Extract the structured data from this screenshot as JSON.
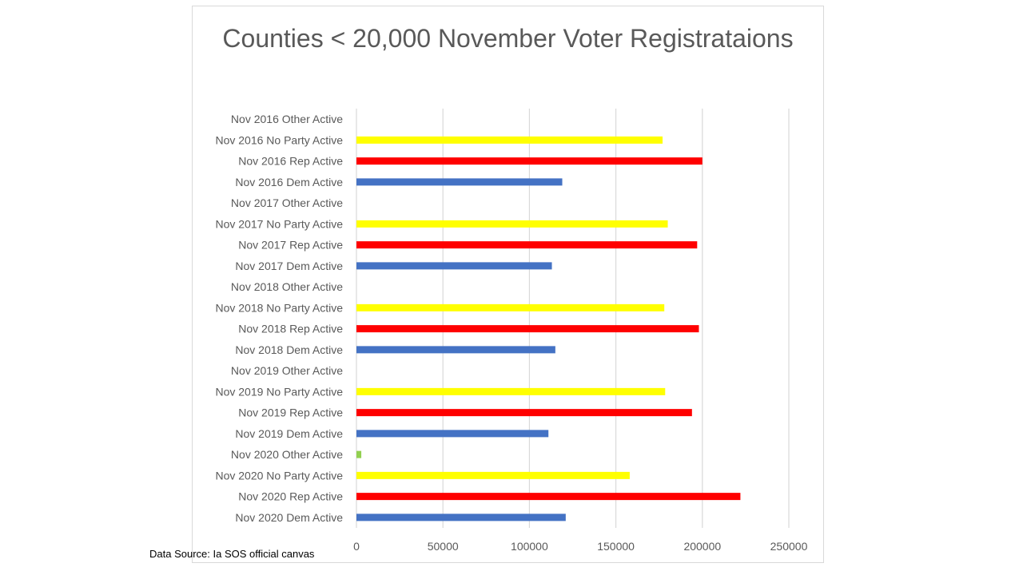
{
  "colors": {
    "dem": "#4472c4",
    "rep": "#ff0000",
    "no_party": "#ffff00",
    "other": "#92d050",
    "gridline": "#d9d9d9",
    "tick_text": "#595959",
    "frame": "#d9d9d9"
  },
  "source_note": "Data Source: Ia SOS official canvas",
  "chart_data": {
    "type": "bar",
    "orientation": "horizontal",
    "title": "Counties < 20,000 November Voter Registrataions",
    "xlabel": "",
    "ylabel": "",
    "xlim": [
      0,
      250000
    ],
    "x_ticks": [
      0,
      50000,
      100000,
      150000,
      200000,
      250000
    ],
    "x_tick_labels": [
      "0",
      "50000",
      "100000",
      "150000",
      "200000",
      "250000"
    ],
    "grid": true,
    "legend": "none",
    "categories": [
      "Nov 2016 Other Active",
      "Nov 2016 No  Party Active",
      "Nov 2016 Rep Active",
      "Nov 2016 Dem Active",
      "Nov 2017 Other Active",
      "Nov 2017 No  Party Active",
      "Nov 2017 Rep Active",
      "Nov 2017 Dem Active",
      "Nov 2018 Other Active",
      "Nov 2018 No  Party Active",
      "Nov 2018 Rep Active",
      "Nov 2018 Dem Active",
      "Nov 2019 Other Active",
      "Nov 2019 No  Party Active",
      "Nov 2019 Rep Active",
      "Nov 2019 Dem Active",
      "Nov 2020 Other Active",
      "Nov 2020 No  Party Active",
      "Nov 2020 Rep Active",
      "Nov 2020 Dem Active"
    ],
    "values": [
      0,
      177000,
      200000,
      119000,
      0,
      180000,
      197000,
      113000,
      0,
      178000,
      198000,
      115000,
      0,
      178500,
      194000,
      111000,
      2800,
      158000,
      222000,
      121000
    ],
    "bar_colors": [
      "#92d050",
      "#ffff00",
      "#ff0000",
      "#4472c4",
      "#92d050",
      "#ffff00",
      "#ff0000",
      "#4472c4",
      "#92d050",
      "#ffff00",
      "#ff0000",
      "#4472c4",
      "#92d050",
      "#ffff00",
      "#ff0000",
      "#4472c4",
      "#92d050",
      "#ffff00",
      "#ff0000",
      "#4472c4"
    ]
  }
}
